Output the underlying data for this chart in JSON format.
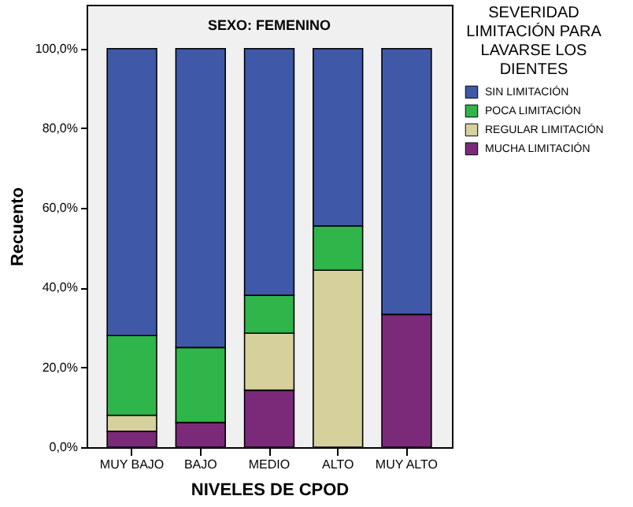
{
  "chart_data": {
    "type": "bar",
    "title": "SEXO: FEMENINO",
    "xlabel": "NIVELES DE CPOD",
    "ylabel": "Recuento",
    "legend_title": "SEVERIDAD LIMITACIÓN PARA LAVARSE LOS DIENTES",
    "legend": "top right",
    "stacked": true,
    "grid": false,
    "categories": [
      "MUY BAJO",
      "BAJO",
      "MEDIO",
      "ALTO",
      "MUY ALTO"
    ],
    "ylim": [
      0,
      111
    ],
    "yticks": [
      {
        "value": 0,
        "label": "0,0%"
      },
      {
        "value": 20,
        "label": "20,0%"
      },
      {
        "value": 40,
        "label": "40,0%"
      },
      {
        "value": 60,
        "label": "60,0%"
      },
      {
        "value": 80,
        "label": "80,0%"
      },
      {
        "value": 100,
        "label": "100,0%"
      }
    ],
    "series": [
      {
        "name": "MUCHA LIMITACIÓN",
        "color": "#7b2a7a",
        "values": [
          4.0,
          6.2,
          14.3,
          0,
          33.3
        ]
      },
      {
        "name": "REGULAR LIMITACIÓN",
        "color": "#d6d19c",
        "values": [
          4.0,
          0,
          14.3,
          44.4,
          0
        ]
      },
      {
        "name": "POCA LIMITACIÓN",
        "color": "#2fb54a",
        "values": [
          20.0,
          18.8,
          9.5,
          11.1,
          0
        ]
      },
      {
        "name": "SIN LIMITACIÓN",
        "color": "#3f58a8",
        "values": [
          72.0,
          75.0,
          61.9,
          44.5,
          66.7
        ]
      }
    ]
  }
}
